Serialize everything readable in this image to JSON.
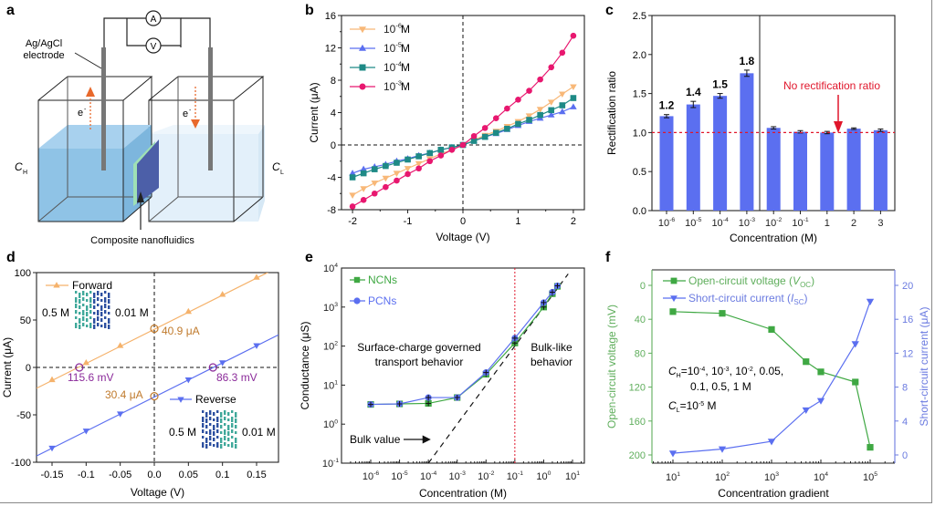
{
  "panels": {
    "a": {
      "letter": "a",
      "electrode_label_1": "Ag/AgCl",
      "electrode_label_2": "electrode",
      "ammeter": "A",
      "voltmeter": "V",
      "electron_left": "e",
      "electron_right": "e",
      "ch_label": "C",
      "ch_sub": "H",
      "cl_label": "C",
      "cl_sub": "L",
      "membrane_label": "Composite nanofluidics",
      "colors": {
        "high_solution": "#8fc3e6",
        "low_solution": "#e3f0fa",
        "membrane": "#4c5fa8",
        "arrow": "#e8692c"
      }
    },
    "b": {
      "letter": "b"
    },
    "c": {
      "letter": "c"
    },
    "d": {
      "letter": "d"
    },
    "e": {
      "letter": "e"
    },
    "f": {
      "letter": "f"
    }
  },
  "chart_data": [
    {
      "id": "b",
      "type": "line",
      "xlabel": "Voltage (V)",
      "ylabel": "Current (μA)",
      "xlim": [
        -2.2,
        2.2
      ],
      "ylim": [
        -8,
        16
      ],
      "xticks": [
        -2,
        -1,
        0,
        1,
        2
      ],
      "yticks": [
        -8,
        -4,
        0,
        4,
        8,
        12,
        16
      ],
      "legend": "top-left",
      "x": [
        -2.0,
        -1.8,
        -1.6,
        -1.4,
        -1.2,
        -1.0,
        -0.8,
        -0.6,
        -0.4,
        -0.2,
        0.0,
        0.2,
        0.4,
        0.6,
        0.8,
        1.0,
        1.2,
        1.4,
        1.6,
        1.8,
        2.0
      ],
      "series": [
        {
          "name": "10",
          "exp": "-6",
          "unit": " M",
          "color": "#f8b878",
          "marker": "triangle-down",
          "values": [
            -6.2,
            -5.4,
            -4.7,
            -4.1,
            -3.5,
            -2.9,
            -2.3,
            -1.7,
            -1.1,
            -0.6,
            0.0,
            0.6,
            1.2,
            1.7,
            2.3,
            2.9,
            3.6,
            4.4,
            5.3,
            6.3,
            7.2
          ]
        },
        {
          "name": "10",
          "exp": "-5",
          "unit": " M",
          "color": "#5b6ff0",
          "marker": "triangle-up",
          "values": [
            -3.5,
            -3.0,
            -2.7,
            -2.4,
            -2.0,
            -1.7,
            -1.3,
            -1.0,
            -0.6,
            -0.3,
            0.0,
            0.5,
            1.0,
            1.4,
            1.9,
            2.4,
            2.9,
            3.3,
            3.7,
            4.1,
            4.7
          ]
        },
        {
          "name": "10",
          "exp": "-4",
          "unit": " M",
          "color": "#1e8a86",
          "marker": "square",
          "values": [
            -4.0,
            -3.5,
            -3.0,
            -2.6,
            -2.2,
            -1.8,
            -1.4,
            -1.0,
            -0.6,
            -0.3,
            0.0,
            0.5,
            1.0,
            1.5,
            2.0,
            2.6,
            3.1,
            3.7,
            4.3,
            4.9,
            5.8
          ]
        },
        {
          "name": "10",
          "exp": "-3",
          "unit": " M",
          "color": "#e8176f",
          "marker": "circle",
          "values": [
            -7.6,
            -6.8,
            -6.0,
            -5.2,
            -4.4,
            -3.6,
            -2.9,
            -2.0,
            -1.3,
            -0.6,
            0.0,
            1.1,
            2.1,
            3.3,
            4.5,
            5.6,
            6.7,
            8.1,
            9.6,
            11.4,
            13.5
          ]
        }
      ]
    },
    {
      "id": "c",
      "type": "bar",
      "xlabel": "Concentration (M)",
      "ylabel": "Rectification ratio",
      "ylim": [
        0,
        2.5
      ],
      "yticks": [
        "0.0",
        "0.5",
        "1.0",
        "1.5",
        "2.0",
        "2.5"
      ],
      "categories": [
        {
          "base": "10",
          "exp": "-6"
        },
        {
          "base": "10",
          "exp": "-5"
        },
        {
          "base": "10",
          "exp": "-4"
        },
        {
          "base": "10",
          "exp": "-3"
        },
        {
          "base": "10",
          "exp": "-2"
        },
        {
          "base": "10",
          "exp": "-1"
        },
        {
          "base": "1",
          "exp": ""
        },
        {
          "base": "2",
          "exp": ""
        },
        {
          "base": "3",
          "exp": ""
        }
      ],
      "values": [
        1.21,
        1.36,
        1.47,
        1.76,
        1.06,
        1.01,
        1.0,
        1.05,
        1.03
      ],
      "errors": [
        0.02,
        0.04,
        0.03,
        0.04,
        0.015,
        0.015,
        0.015,
        0.01,
        0.015
      ],
      "data_labels": [
        "1.2",
        "1.4",
        "1.5",
        "1.8",
        "",
        "",
        "",
        "",
        ""
      ],
      "reference_line": 1.0,
      "annotation": "No rectification ratio",
      "bar_color": "#5b6ff0",
      "annotation_color": "#e0162b"
    },
    {
      "id": "d",
      "type": "line",
      "xlabel": "Voltage (V)",
      "ylabel": "Current (μA)",
      "xlim": [
        -0.175,
        0.18
      ],
      "ylim": [
        -100,
        100
      ],
      "xticks": [
        "-0.15",
        "-0.1",
        "-0.05",
        "0.0",
        "0.05",
        "0.1",
        "0.15"
      ],
      "yticks": [
        "-100",
        "-50",
        "0",
        "50",
        "100"
      ],
      "x": [
        -0.15,
        -0.1,
        -0.05,
        0.0,
        0.05,
        0.1,
        0.15
      ],
      "series": [
        {
          "name": "Forward",
          "color": "#f5b26b",
          "marker": "triangle-up",
          "values": [
            -13,
            5,
            23,
            41,
            59,
            77,
            95
          ]
        },
        {
          "name": "Reverse",
          "color": "#5b6ff0",
          "marker": "triangle-down",
          "values": [
            -85,
            -67,
            -49,
            -30.4,
            -13,
            5,
            23
          ]
        }
      ],
      "annotations": [
        {
          "text": "40.9 μA",
          "x": 0.0,
          "y": 40.9,
          "color": "#c07a2c"
        },
        {
          "text": "30.4 μA",
          "x": 0.0,
          "y": -30.4,
          "color": "#c07a2c"
        },
        {
          "text": "115.6 mV",
          "x": -0.11,
          "y": 0,
          "color": "#8b2a9a"
        },
        {
          "text": "86.3 mV",
          "x": 0.086,
          "y": 0,
          "color": "#8b2a9a"
        }
      ],
      "insets": [
        {
          "left": "0.5 M",
          "right": "0.01 M"
        },
        {
          "left": "0.5 M",
          "right": "0.01 M"
        }
      ]
    },
    {
      "id": "e",
      "type": "line",
      "xlabel": "Concentration (M)",
      "ylabel": "Conductance (μS)",
      "xscale": "log",
      "yscale": "log",
      "xlim_exp": [
        -7,
        1.3
      ],
      "ylim_exp": [
        -1,
        4
      ],
      "xticks_exp": [
        "-6",
        "-5",
        "-4",
        "-3",
        "-2",
        "-1",
        "0",
        "1"
      ],
      "yticks_exp": [
        "-1",
        "0",
        "1",
        "2",
        "3",
        "4"
      ],
      "x": [
        1e-06,
        1e-05,
        0.0001,
        0.001,
        0.01,
        0.1,
        1,
        2,
        3
      ],
      "series": [
        {
          "name": "NCNs",
          "color": "#3fa843",
          "marker": "square",
          "values": [
            3.2,
            3.3,
            3.4,
            4.8,
            19,
            120,
            1000,
            2200,
            3400
          ]
        },
        {
          "name": "PCNs",
          "color": "#5b6ff0",
          "marker": "circle",
          "values": [
            3.2,
            3.3,
            4.8,
            4.8,
            21,
            160,
            1300,
            2400,
            3500
          ]
        }
      ],
      "bulk_line": {
        "label": "Bulk value",
        "slope": 1,
        "x_at_y_tenth": 0.0001
      },
      "vline": {
        "x": 0.1,
        "color": "#e0162b"
      },
      "text_left": [
        "Surface-charge governed",
        "transport behavior"
      ],
      "text_right": [
        "Bulk-like",
        "behavior"
      ]
    },
    {
      "id": "f",
      "type": "line",
      "xlabel": "Concentration gradient",
      "ylabel_left": "Open-circuit voltage (mV)",
      "ylabel_right": "Short-circuit current (μA)",
      "xscale": "log",
      "xticks_exp": [
        "1",
        "2",
        "3",
        "4",
        "5"
      ],
      "ylim_left": [
        -20,
        210
      ],
      "ylim_right": [
        -1,
        21
      ],
      "yticks_left": [
        "0",
        "40",
        "80",
        "120",
        "160",
        "200"
      ],
      "yticks_right": [
        "0",
        "4",
        "8",
        "12",
        "16",
        "20"
      ],
      "x": [
        10,
        100,
        1000,
        5000,
        10000,
        50000,
        100000
      ],
      "series": [
        {
          "name": "Open-circuit voltage (",
          "sym": "V",
          "sub": "OC",
          "close": ")",
          "axis": "left",
          "color": "#3fa843",
          "marker": "square",
          "values": [
            31,
            33,
            52,
            90,
            102,
            114,
            191
          ]
        },
        {
          "name": "Short-circuit current (",
          "sym": "I",
          "sub": "SC",
          "close": ")",
          "axis": "right",
          "color": "#5b6ff0",
          "marker": "triangle-down",
          "values": [
            0.2,
            0.7,
            1.6,
            5.3,
            6.4,
            13.1,
            18.1
          ]
        }
      ],
      "note_ch": {
        "sym": "C",
        "sub": "H",
        "text1": "=10",
        "e1": "-4",
        "t2": ", 10",
        "e2": "-3",
        "t3": ", 10",
        "e3": "-2",
        "t4": ", 0.05,",
        "line2": "0.1, 0.5, 1 M"
      },
      "note_cl": {
        "sym": "C",
        "sub": "L",
        "text": "=10",
        "exp": "-5",
        "unit": " M"
      },
      "left_color": "#5fae5c",
      "right_color": "#6b7be0"
    }
  ]
}
